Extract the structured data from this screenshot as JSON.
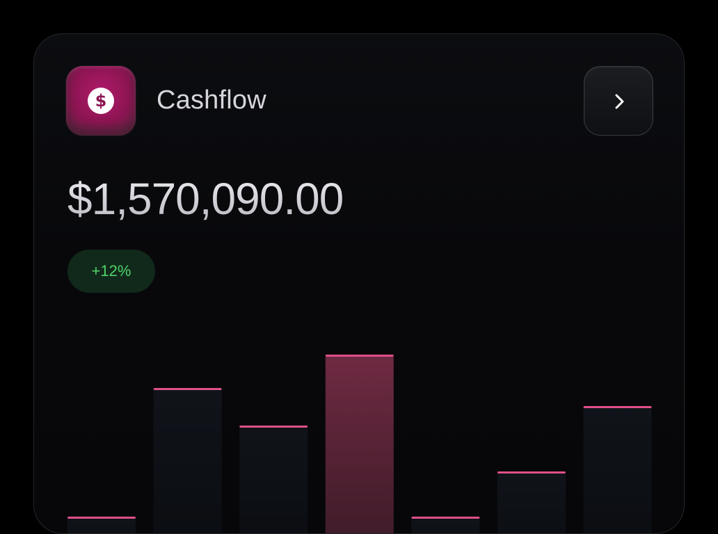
{
  "card": {
    "title": "Cashflow",
    "amount": "$1,570,090.00",
    "change_badge": "+12%",
    "icons": {
      "app_icon": "dollar-coin-icon",
      "nav": "chevron-right-icon"
    }
  },
  "colors": {
    "accent": "#e0508a",
    "app_icon": "#8d1553",
    "positive": "#4ed36a",
    "highlight_bar": "#6e2a42",
    "bar": "#0f1216"
  },
  "chart_data": {
    "type": "bar",
    "categories": [
      "",
      "",
      "",
      "",
      "",
      "",
      ""
    ],
    "values": [
      0,
      186,
      132,
      234,
      0,
      66,
      160
    ],
    "highlight_index": 3
  }
}
